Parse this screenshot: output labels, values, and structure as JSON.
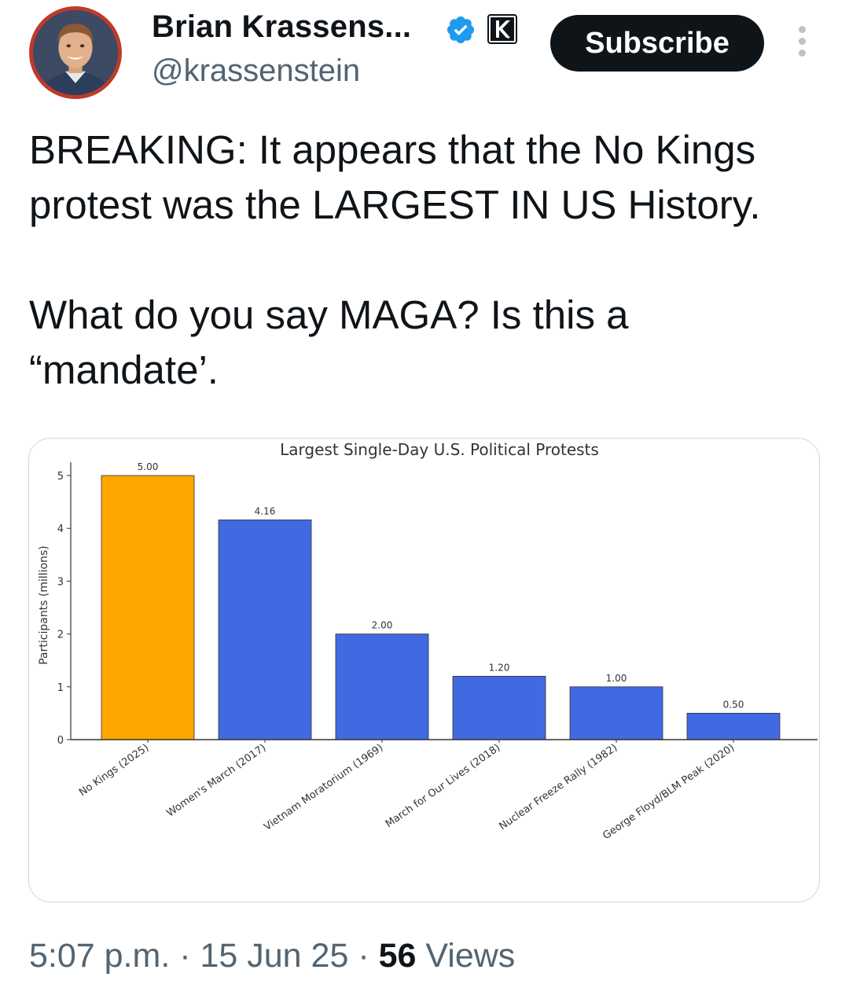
{
  "author": {
    "display_name": "Brian Krassens...",
    "handle": "@krassenstein",
    "avatar_icon": "profile-photo",
    "verified_icon": "verified-badge-icon",
    "affiliation_icon": "k-affiliate-badge-icon",
    "verified_color": "#1d9bf0"
  },
  "actions": {
    "subscribe_label": "Subscribe",
    "more_icon": "more-vertical-icon"
  },
  "tweet": {
    "paragraph_1": "BREAKING:  It appears that the No Kings protest was the LARGEST IN US History.",
    "paragraph_2": "What do you say MAGA?  Is this a “mandate’."
  },
  "meta": {
    "time": "5:07 p.m.",
    "sep1": " · ",
    "date": "15 Jun 25",
    "sep2": " · ",
    "views_count": "56",
    "views_label": " Views"
  },
  "chart_data": {
    "type": "bar",
    "title": "Largest Single-Day U.S. Political Protests",
    "ylabel": "Participants (millions)",
    "xlabel": "",
    "ylim": [
      0,
      5.2
    ],
    "yticks": [
      0,
      1,
      2,
      3,
      4,
      5
    ],
    "grid": false,
    "categories": [
      "No Kings (2025)",
      "Women's March (2017)",
      "Vietnam Moratorium (1969)",
      "March for Our Lives (2018)",
      "Nuclear Freeze Rally (1982)",
      "George Floyd/BLM Peak (2020)"
    ],
    "values": [
      5.0,
      4.16,
      2.0,
      1.2,
      1.0,
      0.5
    ],
    "value_labels": [
      "5.00",
      "4.16",
      "2.00",
      "1.20",
      "1.00",
      "0.50"
    ],
    "colors": [
      "#ffa500",
      "#4169e1",
      "#4169e1",
      "#4169e1",
      "#4169e1",
      "#4169e1"
    ]
  }
}
